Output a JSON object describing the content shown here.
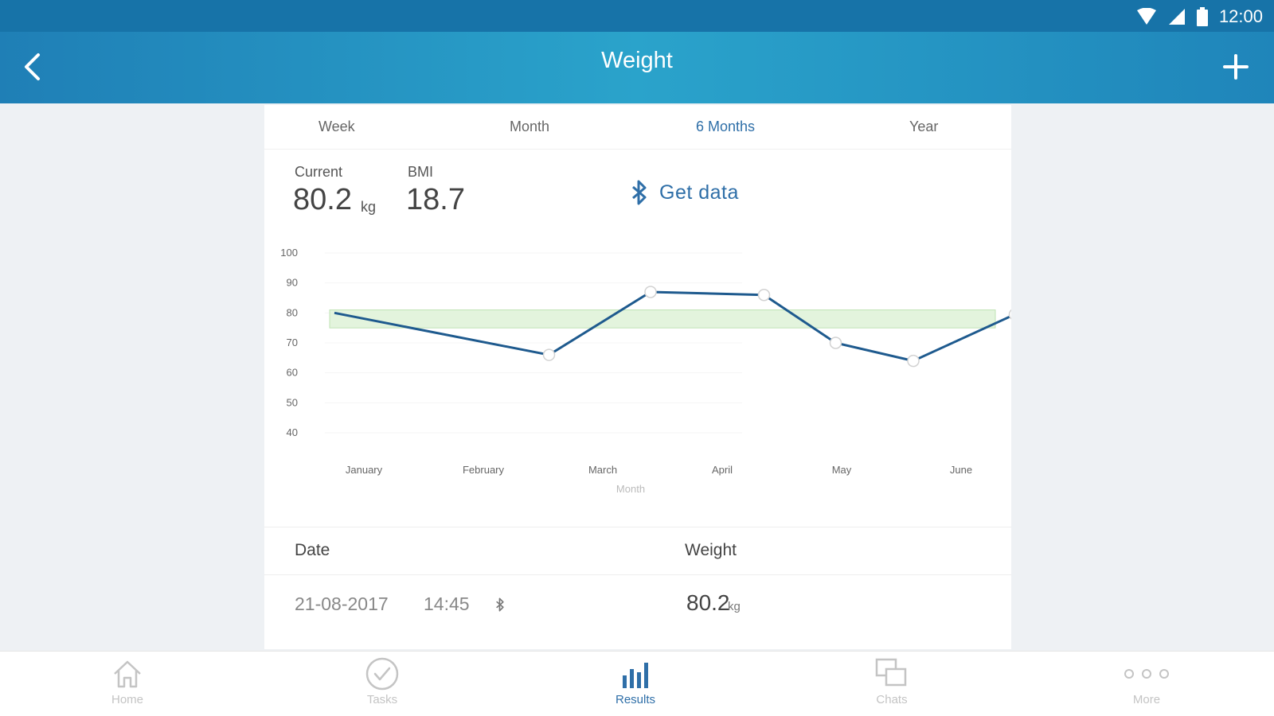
{
  "status": {
    "time": "12:00"
  },
  "appbar": {
    "title": "Weight"
  },
  "tabs": [
    {
      "label": "Week",
      "active": false
    },
    {
      "label": "Month",
      "active": false
    },
    {
      "label": "6 Months",
      "active": true
    },
    {
      "label": "Year",
      "active": false
    }
  ],
  "summary": {
    "current_label": "Current",
    "current_value": "80.2",
    "current_unit": "kg",
    "bmi_label": "BMI",
    "bmi_value": "18.7",
    "get_data_label": "Get data"
  },
  "chart_data": {
    "type": "line",
    "categories": [
      "January",
      "February",
      "March",
      "April",
      "May",
      "June"
    ],
    "series": [
      {
        "x": [
          0.45,
          1.55,
          2.4,
          3.35,
          3.95,
          4.6,
          5.45
        ],
        "values": [
          80,
          66,
          87,
          86,
          70,
          64,
          79.5
        ]
      }
    ],
    "yticks": [
      100,
      90,
      80,
      70,
      60,
      50,
      40
    ],
    "ylim": [
      40,
      100
    ],
    "target_band": [
      75,
      81
    ],
    "xlabel": "Month",
    "colors": {
      "line": "#1e5a8e",
      "band": "#e3f4dd",
      "band_edge": "#bfe3b4"
    }
  },
  "table": {
    "headers": [
      "Date",
      "Weight"
    ],
    "rows": [
      {
        "date": "21-08-2017",
        "time": "14:45",
        "weight": "80.2",
        "unit": "kg"
      }
    ]
  },
  "nav": [
    {
      "label": "Home",
      "icon": "home-icon",
      "active": false
    },
    {
      "label": "Tasks",
      "icon": "check-circle-icon",
      "active": false
    },
    {
      "label": "Results",
      "icon": "bar-chart-icon",
      "active": true
    },
    {
      "label": "Chats",
      "icon": "chat-icon",
      "active": false
    },
    {
      "label": "More",
      "icon": "more-dots-icon",
      "active": false
    }
  ],
  "colors": {
    "accent": "#2f6fa8",
    "appbar": "#2a9bc7",
    "statusbar": "#1773a8"
  }
}
